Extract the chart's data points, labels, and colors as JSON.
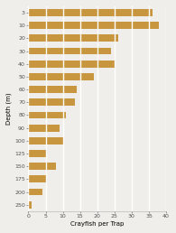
{
  "depths": [
    "3",
    "10",
    "20",
    "30",
    "40",
    "50",
    "60",
    "70",
    "80",
    "90",
    "100",
    "125",
    "150",
    "175",
    "200",
    "250"
  ],
  "values": [
    36,
    38,
    26,
    24,
    25,
    19,
    14,
    13.5,
    11,
    9,
    10,
    5,
    8,
    5,
    4,
    1
  ],
  "bar_color": "#c8963e",
  "xlabel": "Crayfish per Trap",
  "ylabel": "Depth (m)",
  "xlim": [
    0,
    40
  ],
  "xticks": [
    0,
    5,
    10,
    15,
    20,
    25,
    30,
    35,
    40
  ],
  "background_color": "#f0eeeb",
  "grid_color": "#ffffff",
  "bar_height": 0.55
}
